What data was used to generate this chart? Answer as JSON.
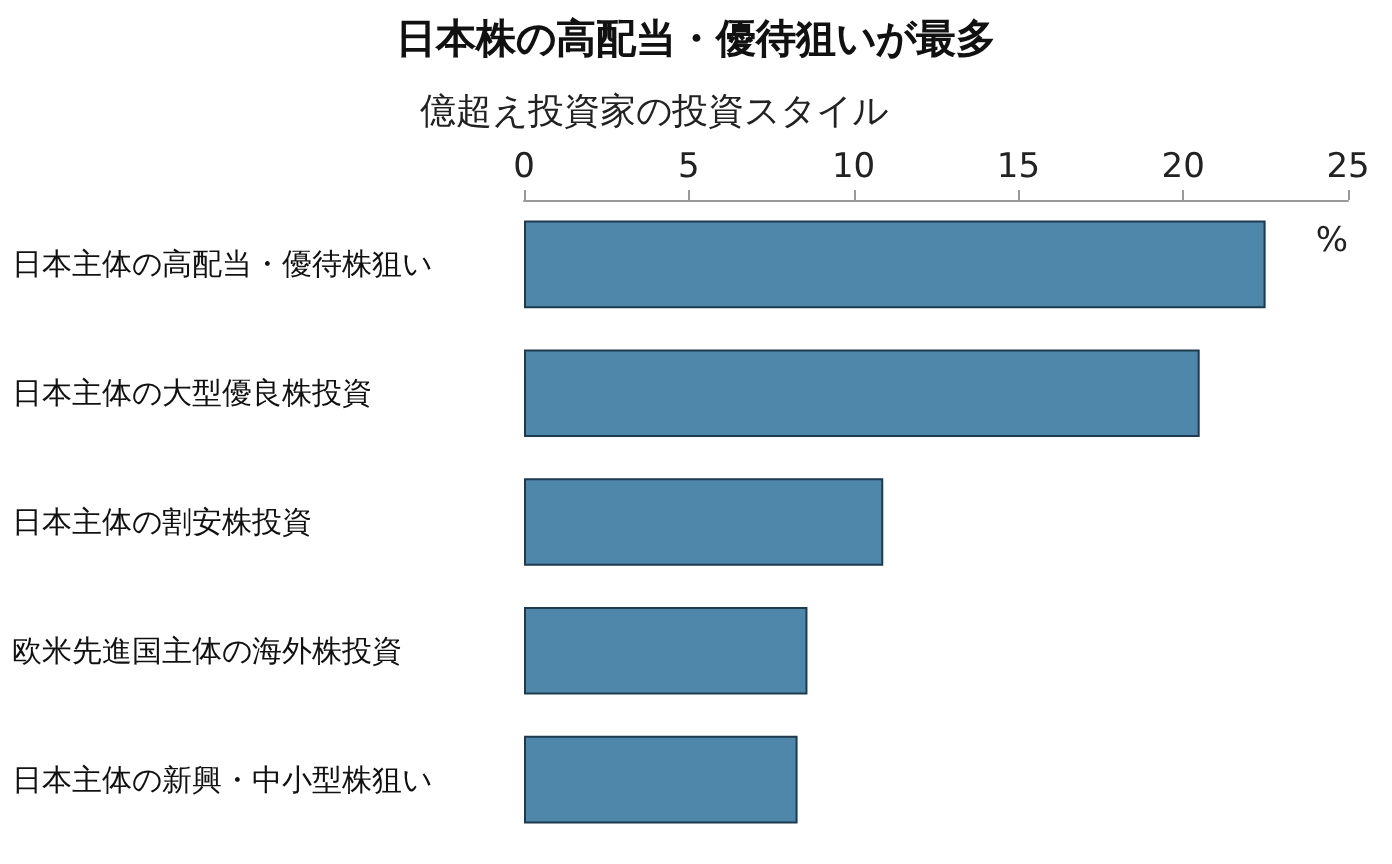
{
  "chart_data": {
    "type": "bar",
    "orientation": "horizontal",
    "title": "日本株の高配当・優待狙いが最多",
    "subtitle": "億超え投資家の投資スタイル",
    "categories": [
      "日本主体の高配当・優待株狙い",
      "日本主体の大型優良株投資",
      "日本主体の割安株投資",
      "欧米先進国主体の海外株投資",
      "日本主体の新興・中小型株狙い"
    ],
    "values": [
      22.5,
      20.5,
      10.9,
      8.6,
      8.3
    ],
    "color": "#4f87ab",
    "xlim": [
      0,
      25
    ],
    "xticks": [
      0,
      5,
      10,
      15,
      20,
      25
    ],
    "grid": false,
    "annotations": [
      "%"
    ]
  }
}
